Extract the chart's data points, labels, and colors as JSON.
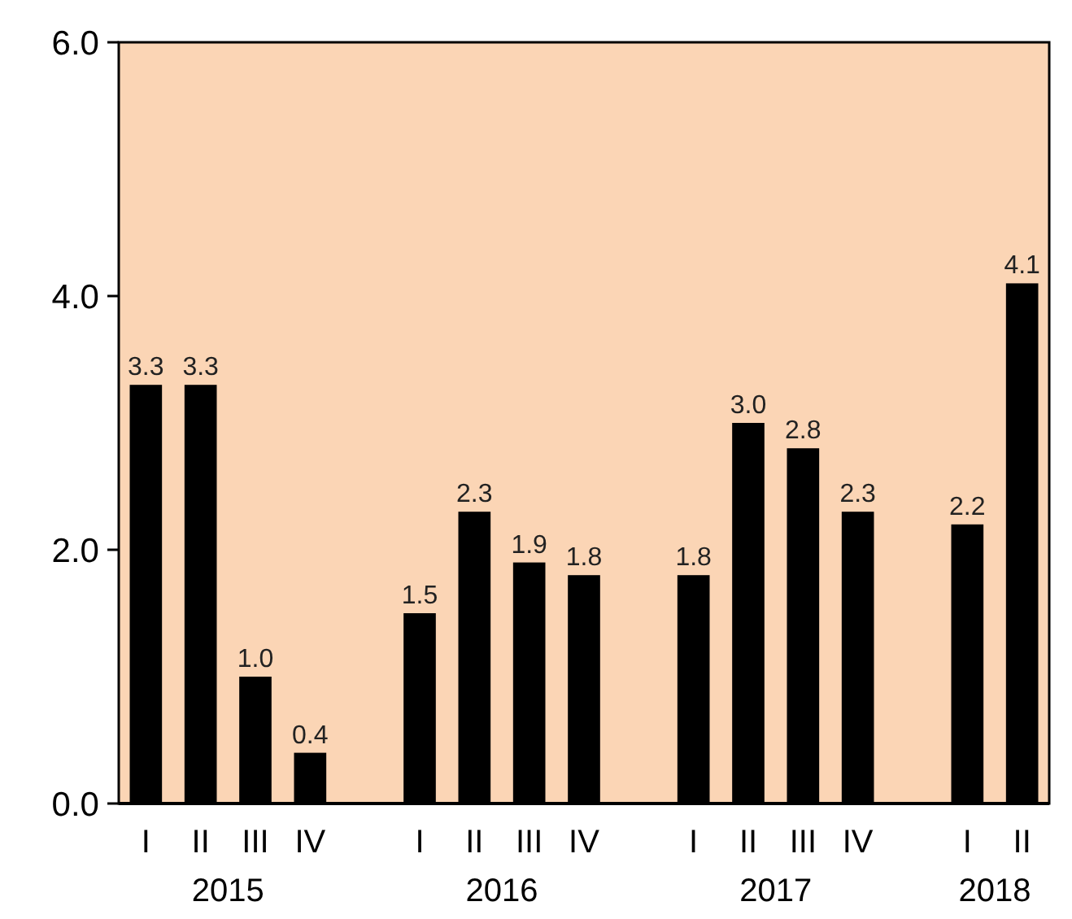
{
  "chart_data": {
    "type": "bar",
    "categories": [
      "I",
      "II",
      "III",
      "IV",
      null,
      "I",
      "II",
      "III",
      "IV",
      null,
      "I",
      "II",
      "III",
      "IV",
      null,
      "I",
      "II"
    ],
    "values": [
      3.3,
      3.3,
      1.0,
      0.4,
      null,
      1.5,
      2.3,
      1.9,
      1.8,
      null,
      1.8,
      3.0,
      2.8,
      2.3,
      null,
      2.2,
      4.1
    ],
    "value_labels": [
      "3.3",
      "3.3",
      "1.0",
      "0.4",
      null,
      "1.5",
      "2.3",
      "1.9",
      "1.8",
      null,
      "1.8",
      "3.0",
      "2.8",
      "2.3",
      null,
      "2.2",
      "4.1"
    ],
    "color": "#000000",
    "ylim": [
      0,
      6
    ],
    "yticks": [
      {
        "value": 0,
        "label": "0.0"
      },
      {
        "value": 2,
        "label": "2.0"
      },
      {
        "value": 4,
        "label": "4.0"
      },
      {
        "value": 6,
        "label": "6.0"
      }
    ],
    "annotations": [
      "2015",
      "2016",
      "2017",
      "2018"
    ]
  }
}
